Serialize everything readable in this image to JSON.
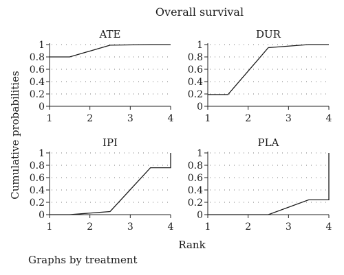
{
  "figure": {
    "title": "Overall survival",
    "ylabel": "Cumulative probabilities",
    "xlabel": "Rank",
    "note": "Graphs by treatment"
  },
  "chart_data": [
    {
      "type": "line",
      "title": "ATE",
      "xlabel": "",
      "ylabel": "",
      "x": [
        1,
        1.5,
        2.5,
        3.5,
        4
      ],
      "values": [
        0.8,
        0.8,
        0.99,
        1.0,
        1.0
      ],
      "xlim": [
        1,
        4
      ],
      "ylim": [
        0,
        1
      ],
      "xticks": [
        "1",
        "2",
        "3",
        "4"
      ],
      "yticks": [
        "0",
        "0.2",
        "0.4",
        "0.6",
        "0.8",
        "1"
      ],
      "grid": true
    },
    {
      "type": "line",
      "title": "DUR",
      "xlabel": "",
      "ylabel": "",
      "x": [
        1,
        1.5,
        2.5,
        3.5,
        4
      ],
      "values": [
        0.19,
        0.19,
        0.95,
        1.0,
        1.0
      ],
      "xlim": [
        1,
        4
      ],
      "ylim": [
        0,
        1
      ],
      "xticks": [
        "1",
        "2",
        "3",
        "4"
      ],
      "yticks": [
        "0",
        "0.2",
        "0.4",
        "0.6",
        "0.8",
        "1"
      ],
      "grid": true
    },
    {
      "type": "line",
      "title": "IPI",
      "xlabel": "",
      "ylabel": "",
      "x": [
        1,
        1.5,
        2.5,
        3.5,
        4,
        4
      ],
      "values": [
        0.0,
        0.0,
        0.05,
        0.76,
        0.76,
        1.0
      ],
      "xlim": [
        1,
        4
      ],
      "ylim": [
        0,
        1
      ],
      "xticks": [
        "1",
        "2",
        "3",
        "4"
      ],
      "yticks": [
        "0",
        "0.2",
        "0.4",
        "0.6",
        "0.8",
        "1"
      ],
      "grid": true
    },
    {
      "type": "line",
      "title": "PLA",
      "xlabel": "",
      "ylabel": "",
      "x": [
        1,
        1.5,
        2.5,
        3.5,
        4,
        4
      ],
      "values": [
        0.0,
        0.0,
        0.0,
        0.24,
        0.24,
        1.0
      ],
      "xlim": [
        1,
        4
      ],
      "ylim": [
        0,
        1
      ],
      "xticks": [
        "1",
        "2",
        "3",
        "4"
      ],
      "yticks": [
        "0",
        "0.2",
        "0.4",
        "0.6",
        "0.8",
        "1"
      ],
      "grid": true
    }
  ]
}
